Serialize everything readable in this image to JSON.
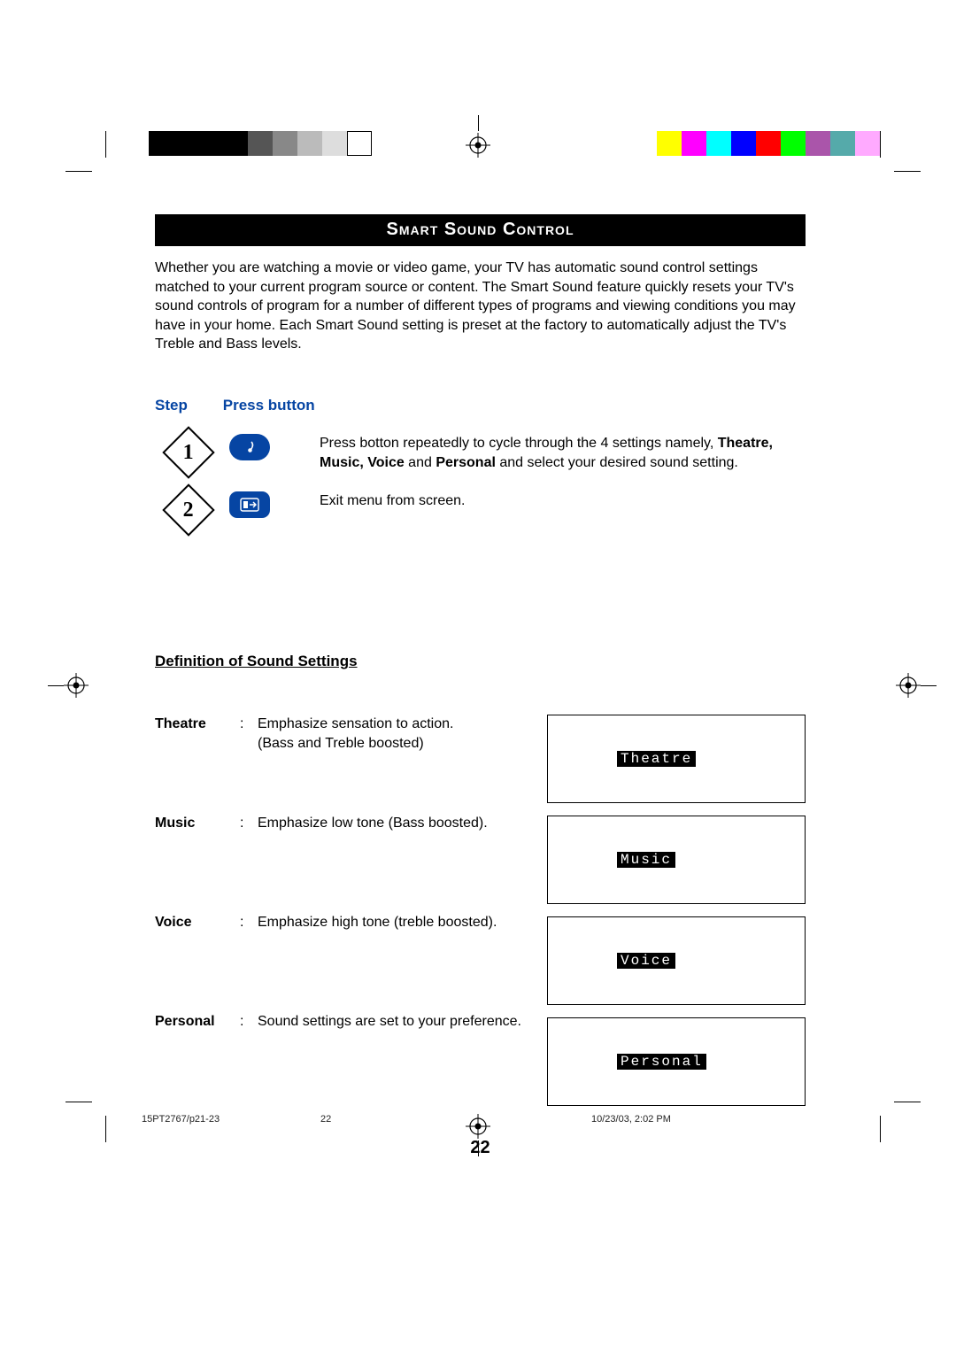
{
  "title": "Smart Sound Control",
  "intro": "Whether you are watching a movie or video game, your TV has automatic sound control settings matched to your current program source or content. The Smart Sound feature quickly resets your TV's sound controls of program for a number of different types of programs and viewing conditions you may have in your home. Each Smart Sound setting is preset at the factory to automatically adjust the TV's Treble and Bass levels.",
  "step_header": {
    "step": "Step",
    "press": "Press button"
  },
  "steps": [
    {
      "num": "1",
      "text_pre": "Press botton repeatedly to cycle through the 4 settings namely, ",
      "bold": "Theatre, Music, Voice",
      "mid": " and ",
      "bold2": "Personal",
      "text_post": " and select your desired sound setting."
    },
    {
      "num": "2",
      "text": "Exit menu from screen."
    }
  ],
  "definitions_heading": "Definition of Sound Settings",
  "definitions": [
    {
      "name": "Theatre",
      "desc": "Emphasize sensation to action.\n(Bass and Treble boosted)",
      "osd": "Theatre"
    },
    {
      "name": "Music",
      "desc": "Emphasize low tone (Bass boosted).",
      "osd": "Music"
    },
    {
      "name": "Voice",
      "desc": "Emphasize high tone (treble boosted).",
      "osd": "Voice"
    },
    {
      "name": "Personal",
      "desc": "Sound settings are set to your preference.",
      "osd": "Personal"
    }
  ],
  "page_number": "22",
  "footer": {
    "file": "15PT2767/p21-23",
    "page": "22",
    "timestamp": "10/23/03, 2:02 PM"
  },
  "colors": {
    "accent": "#0645a3",
    "color_bar": [
      "#ffff00",
      "#ff00ff",
      "#00ffff",
      "#0000ff",
      "#ff0000",
      "#00ff00",
      "#aa55aa",
      "#55aaaa",
      "#ffaaff"
    ]
  }
}
